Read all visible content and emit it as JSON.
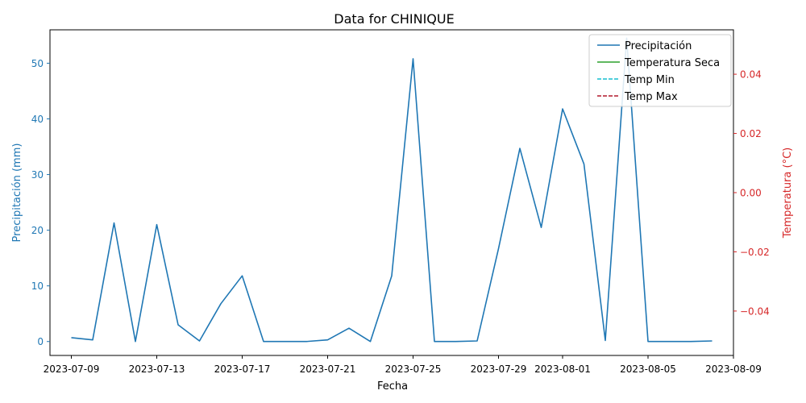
{
  "chart_data": {
    "type": "line",
    "title": "Data for CHINIQUE",
    "xlabel": "Fecha",
    "ylabel_left": "Precipitación (mm)",
    "ylabel_right": "Temperatura (°C)",
    "x_range": [
      "2023-07-08",
      "2023-08-09"
    ],
    "x_ticks": [
      "2023-07-09",
      "2023-07-13",
      "2023-07-17",
      "2023-07-21",
      "2023-07-25",
      "2023-07-29",
      "2023-08-01",
      "2023-08-05",
      "2023-08-09"
    ],
    "ylim_left": [
      -2.5,
      56
    ],
    "yticks_left": [
      0,
      10,
      20,
      30,
      40,
      50
    ],
    "ylim_right": [
      -0.055,
      0.055
    ],
    "yticks_right": [
      -0.04,
      -0.02,
      0.0,
      0.02,
      0.04
    ],
    "yticklabels_right": [
      "−0.04",
      "−0.02",
      "0.00",
      "0.02",
      "0.04"
    ],
    "legend_position": "top-right",
    "grid": false,
    "colors": {
      "precip": "#1f77b4",
      "temp_seca": "#2ca02c",
      "temp_min": "#17becf",
      "temp_max": "#b2182b",
      "temp_axis": "#d62728"
    },
    "series": [
      {
        "name": "Precipitación",
        "style": "solid",
        "color": "#1f77b4",
        "x": [
          "2023-07-09",
          "2023-07-10",
          "2023-07-11",
          "2023-07-12",
          "2023-07-13",
          "2023-07-14",
          "2023-07-15",
          "2023-07-16",
          "2023-07-17",
          "2023-07-18",
          "2023-07-19",
          "2023-07-20",
          "2023-07-21",
          "2023-07-22",
          "2023-07-23",
          "2023-07-24",
          "2023-07-25",
          "2023-07-26",
          "2023-07-27",
          "2023-07-28",
          "2023-07-29",
          "2023-07-30",
          "2023-07-31",
          "2023-08-01",
          "2023-08-02",
          "2023-08-03",
          "2023-08-04",
          "2023-08-05",
          "2023-08-06",
          "2023-08-07",
          "2023-08-08"
        ],
        "values": [
          0.7,
          0.3,
          21.3,
          0.0,
          21.0,
          3.0,
          0.1,
          6.8,
          11.8,
          0.0,
          0.0,
          0.0,
          0.3,
          2.4,
          0.0,
          11.8,
          50.8,
          0.0,
          0.0,
          0.1,
          16.7,
          34.7,
          20.5,
          41.8,
          31.9,
          0.2,
          54.5,
          0.0,
          0.0,
          0.0,
          0.1
        ]
      },
      {
        "name": "Temperatura Seca",
        "style": "solid",
        "color": "#2ca02c",
        "values": []
      },
      {
        "name": "Temp Min",
        "style": "dashed",
        "color": "#17becf",
        "values": []
      },
      {
        "name": "Temp Max",
        "style": "dashed",
        "color": "#b2182b",
        "values": []
      }
    ]
  }
}
